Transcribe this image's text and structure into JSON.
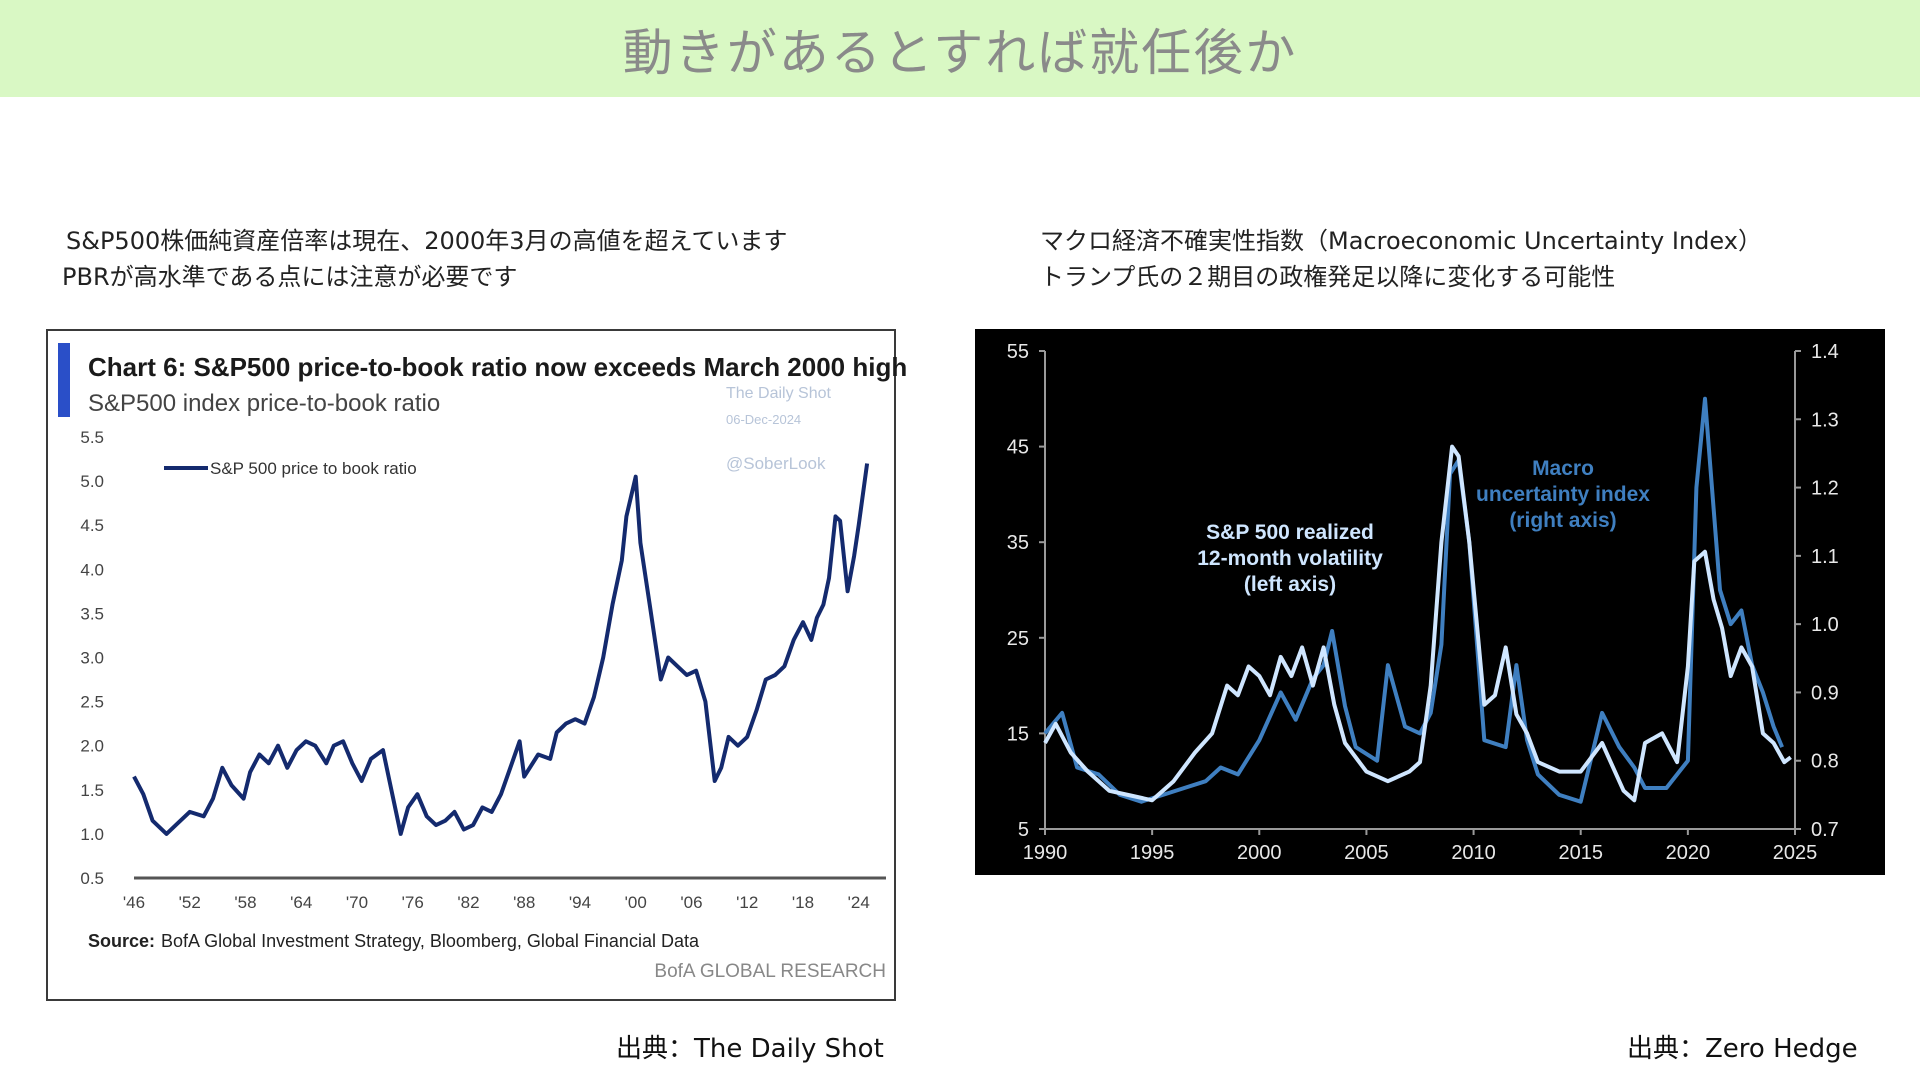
{
  "page": {
    "title": "動きがあるとすれば就任後か"
  },
  "left": {
    "caption_line1": "S&P500株価純資産倍率は現在、2000年3月の高値を超えています",
    "caption_line2": "PBRが高水準である点には注意が必要です",
    "source": "出典：The Daily Shot"
  },
  "right": {
    "caption_line1": "マクロ経済不確実性指数（Macroeconomic Uncertainty Index）",
    "caption_line2": "トランプ氏の２期目の政権発足以降に変化する可能性",
    "source": "出典：Zero Hedge"
  },
  "chart_data": [
    {
      "type": "line",
      "title": "Chart 6: S&P500 price-to-book ratio now exceeds March 2000 high",
      "subtitle": "S&P500 index price-to-book ratio",
      "watermark": [
        "The Daily Shot",
        "06-Dec-2024",
        "@SoberLook"
      ],
      "source_label": "Source:",
      "source_text": "BofA Global Investment Strategy, Bloomberg, Global Financial Data",
      "brand": "BofA GLOBAL RESEARCH",
      "accent_color": "#2a4fc8",
      "line_color": "#142a6e",
      "xlim": [
        1946,
        2025
      ],
      "ylim": [
        0.5,
        5.5
      ],
      "y_ticks": [
        "0.5",
        "1.0",
        "1.5",
        "2.0",
        "2.5",
        "3.0",
        "3.5",
        "4.0",
        "4.5",
        "5.0",
        "5.5"
      ],
      "x_tick_labels": [
        "'46",
        "'52",
        "'58",
        "'64",
        "'70",
        "'76",
        "'82",
        "'88",
        "'94",
        "'00",
        "'06",
        "'12",
        "'18",
        "'24"
      ],
      "grid": false,
      "legend": "top-left",
      "series": [
        {
          "name": "S&P 500 price to book ratio",
          "x": [
            1946.0,
            1947.0,
            1948.0,
            1949.5,
            1950.5,
            1952.0,
            1953.5,
            1954.5,
            1955.5,
            1956.5,
            1957.8,
            1958.5,
            1959.5,
            1960.5,
            1961.5,
            1962.5,
            1963.5,
            1964.5,
            1965.5,
            1966.7,
            1967.5,
            1968.5,
            1969.5,
            1970.5,
            1971.5,
            1972.8,
            1973.5,
            1974.7,
            1975.5,
            1976.5,
            1977.5,
            1978.5,
            1979.5,
            1980.5,
            1981.5,
            1982.5,
            1983.5,
            1984.5,
            1985.5,
            1986.5,
            1987.5,
            1988.0,
            1989.5,
            1990.8,
            1991.5,
            1992.5,
            1993.5,
            1994.5,
            1995.5,
            1996.5,
            1997.5,
            1998.5,
            1999.0,
            2000.0,
            2000.5,
            2001.5,
            2002.7,
            2003.5,
            2004.5,
            2005.5,
            2006.5,
            2007.5,
            2008.5,
            2009.2,
            2010.0,
            2011.0,
            2012.0,
            2013.0,
            2014.0,
            2015.0,
            2016.0,
            2017.0,
            2018.0,
            2018.9,
            2019.5,
            2020.2,
            2020.8,
            2021.5,
            2022.0,
            2022.8,
            2023.5,
            2024.0,
            2024.9
          ],
          "y": [
            1.65,
            1.45,
            1.15,
            1.0,
            1.1,
            1.25,
            1.2,
            1.4,
            1.75,
            1.55,
            1.4,
            1.7,
            1.9,
            1.8,
            2.0,
            1.75,
            1.95,
            2.05,
            2.0,
            1.8,
            2.0,
            2.05,
            1.8,
            1.6,
            1.85,
            1.95,
            1.6,
            1.0,
            1.3,
            1.45,
            1.2,
            1.1,
            1.15,
            1.25,
            1.05,
            1.1,
            1.3,
            1.25,
            1.45,
            1.75,
            2.05,
            1.65,
            1.9,
            1.85,
            2.15,
            2.25,
            2.3,
            2.25,
            2.55,
            3.0,
            3.6,
            4.1,
            4.6,
            5.05,
            4.3,
            3.6,
            2.75,
            3.0,
            2.9,
            2.8,
            2.85,
            2.5,
            1.6,
            1.75,
            2.1,
            2.0,
            2.1,
            2.4,
            2.75,
            2.8,
            2.9,
            3.2,
            3.4,
            3.2,
            3.45,
            3.6,
            3.9,
            4.6,
            4.55,
            3.75,
            4.15,
            4.5,
            5.2
          ]
        }
      ]
    },
    {
      "type": "line",
      "title": "",
      "background": "#000000",
      "xlim": [
        1990,
        2025
      ],
      "ylim_left": [
        5,
        55
      ],
      "ylim_right": [
        0.7,
        1.4
      ],
      "x_ticks": [
        "1990",
        "1995",
        "2000",
        "2005",
        "2010",
        "2015",
        "2020",
        "2025"
      ],
      "y_ticks_left": [
        "5",
        "15",
        "25",
        "35",
        "45",
        "55"
      ],
      "y_ticks_right": [
        "0.7",
        "0.8",
        "0.9",
        "1.0",
        "1.1",
        "1.2",
        "1.3",
        "1.4"
      ],
      "grid": false,
      "series": [
        {
          "name": "S&P 500 realized 12-month volatility (left axis)",
          "axis": "left",
          "color": "#cfe6ff",
          "x": [
            1990.0,
            1990.5,
            1991.2,
            1992.0,
            1993.0,
            1994.0,
            1995.0,
            1996.0,
            1997.0,
            1997.8,
            1998.5,
            1999.0,
            1999.5,
            2000.0,
            2000.5,
            2001.0,
            2001.5,
            2002.0,
            2002.5,
            2003.0,
            2003.5,
            2004.0,
            2005.0,
            2006.0,
            2007.0,
            2007.5,
            2008.0,
            2008.5,
            2009.0,
            2009.3,
            2009.8,
            2010.5,
            2011.0,
            2011.5,
            2012.0,
            2012.5,
            2013.0,
            2014.0,
            2015.0,
            2016.0,
            2017.0,
            2017.5,
            2018.0,
            2018.8,
            2019.5,
            2020.0,
            2020.3,
            2020.8,
            2021.2,
            2021.6,
            2022.0,
            2022.5,
            2023.0,
            2023.5,
            2024.0,
            2024.5,
            2024.8
          ],
          "y": [
            14,
            16,
            13,
            11,
            9,
            8.5,
            8,
            10,
            13,
            15,
            20,
            19,
            22,
            21,
            19,
            23,
            21,
            24,
            20,
            24,
            18,
            14,
            11,
            10,
            11,
            12,
            20,
            35,
            45,
            44,
            35,
            18,
            19,
            24,
            17,
            15,
            12,
            11,
            11,
            14,
            9,
            8,
            14,
            15,
            12,
            22,
            33,
            34,
            29,
            26,
            21,
            24,
            22,
            15,
            14,
            12,
            12.5
          ]
        },
        {
          "name": "Macro uncertainty index (right axis)",
          "axis": "right",
          "color": "#3f7fc0",
          "x": [
            1990.0,
            1990.8,
            1991.5,
            1992.5,
            1993.5,
            1994.5,
            1995.5,
            1996.5,
            1997.5,
            1998.2,
            1999.0,
            2000.0,
            2001.0,
            2001.7,
            2002.5,
            2003.0,
            2003.4,
            2004.0,
            2004.5,
            2005.5,
            2006.0,
            2006.8,
            2007.5,
            2008.0,
            2008.5,
            2008.9,
            2009.3,
            2009.8,
            2010.5,
            2011.5,
            2012.0,
            2012.5,
            2013.0,
            2014.0,
            2015.0,
            2016.0,
            2016.8,
            2017.5,
            2018.0,
            2019.0,
            2020.0,
            2020.4,
            2020.8,
            2021.5,
            2022.0,
            2022.5,
            2023.0,
            2023.5,
            2024.0,
            2024.4
          ],
          "y": [
            0.84,
            0.87,
            0.79,
            0.78,
            0.75,
            0.74,
            0.75,
            0.76,
            0.77,
            0.79,
            0.78,
            0.83,
            0.9,
            0.86,
            0.92,
            0.94,
            0.99,
            0.88,
            0.82,
            0.8,
            0.94,
            0.85,
            0.84,
            0.87,
            0.97,
            1.22,
            1.24,
            1.12,
            0.83,
            0.82,
            0.94,
            0.83,
            0.78,
            0.75,
            0.74,
            0.87,
            0.82,
            0.79,
            0.76,
            0.76,
            0.8,
            1.2,
            1.33,
            1.05,
            1.0,
            1.02,
            0.94,
            0.9,
            0.85,
            0.82
          ]
        }
      ],
      "annotations": [
        {
          "lines": [
            "S&P 500 realized",
            "12-month volatility",
            "(left axis)"
          ],
          "color": "#cfe6ff"
        },
        {
          "lines": [
            "Macro",
            "uncertainty index",
            "(right axis)"
          ],
          "color": "#3f7fc0"
        }
      ]
    }
  ]
}
